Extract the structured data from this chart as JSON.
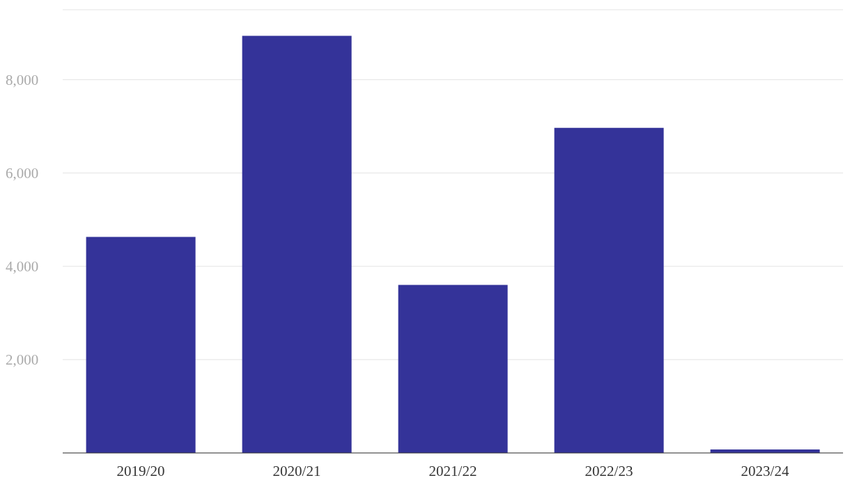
{
  "chart_data": {
    "type": "bar",
    "categories": [
      "2019/20",
      "2020/21",
      "2021/22",
      "2022/23",
      "2023/24"
    ],
    "values": [
      4630,
      8940,
      3600,
      6970,
      75
    ],
    "color": "#343399",
    "ylim": [
      0,
      9500
    ],
    "yticks": [
      {
        "value": 2000,
        "label": "2,000"
      },
      {
        "value": 4000,
        "label": "4,000"
      },
      {
        "value": 6000,
        "label": "6,000"
      },
      {
        "value": 8000,
        "label": "8,000"
      }
    ],
    "grid": "y"
  }
}
